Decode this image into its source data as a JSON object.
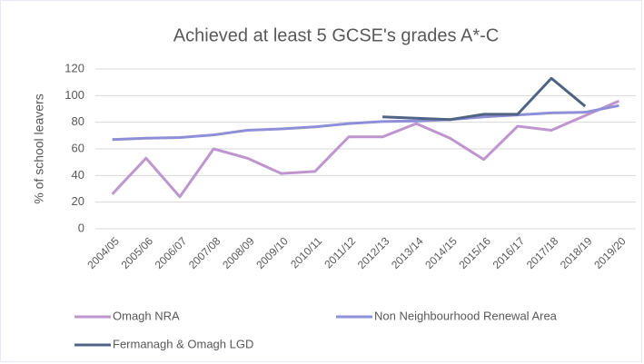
{
  "chart_data": {
    "type": "line",
    "title": "Achieved at least 5 GCSE's grades A*-C",
    "y_label": "% of school leavers",
    "categories": [
      "2004/05",
      "2005/06",
      "2006/07",
      "2007/08",
      "2008/09",
      "2009/10",
      "2010/11",
      "2011/12",
      "2012/13",
      "2013/14",
      "2014/15",
      "2015/16",
      "2016/17",
      "2017/18",
      "2018/19",
      "2019/20"
    ],
    "series": [
      {
        "name": "Omagh NRA",
        "color": "#bf95d0",
        "values": [
          26,
          53,
          24,
          60,
          53,
          41.5,
          43,
          69,
          69,
          79,
          68,
          52,
          77,
          74,
          85,
          96
        ]
      },
      {
        "name": "Non Neighbourhood Renewal Area",
        "color": "#8f8fd8",
        "values": [
          67,
          68,
          68.5,
          70.5,
          74,
          75,
          76.5,
          79,
          80.5,
          81,
          82,
          84,
          85.5,
          87,
          87.5,
          92.5
        ]
      },
      {
        "name": "Fermanagh & Omagh LGD",
        "color": "#4f6484",
        "values": [
          null,
          null,
          null,
          null,
          null,
          null,
          null,
          null,
          84,
          83,
          82,
          86,
          86,
          113,
          92,
          null
        ]
      }
    ],
    "ylim": [
      0,
      120
    ],
    "yticks": [
      0,
      20,
      40,
      60,
      80,
      100,
      120
    ],
    "grid": true
  }
}
